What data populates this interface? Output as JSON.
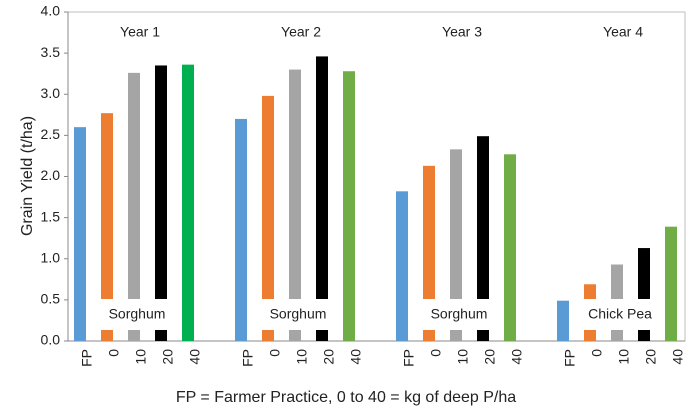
{
  "chart_data": {
    "type": "grouped_bar",
    "ylabel": "Grain Yield (t/ha)",
    "xlabel": "FP = Farmer Practice,  0 to 40 = kg of deep P/ha",
    "categories": [
      "FP",
      "0",
      "10",
      "20",
      "40"
    ],
    "groups": [
      {
        "label": "Year 1",
        "crop": "Sorghum",
        "values": [
          2.6,
          2.77,
          3.26,
          3.35,
          3.36
        ],
        "colors": [
          "#5b9bd5",
          "#ed7d31",
          "#a5a5a5",
          "#000000",
          "#00b050"
        ]
      },
      {
        "label": "Year 2",
        "crop": "Sorghum",
        "values": [
          2.7,
          2.98,
          3.3,
          3.46,
          3.28
        ],
        "colors": [
          "#5b9bd5",
          "#ed7d31",
          "#a5a5a5",
          "#000000",
          "#70ad47"
        ]
      },
      {
        "label": "Year 3",
        "crop": "Sorghum",
        "values": [
          1.82,
          2.13,
          2.33,
          2.49,
          2.27
        ],
        "colors": [
          "#5b9bd5",
          "#ed7d31",
          "#a5a5a5",
          "#000000",
          "#70ad47"
        ]
      },
      {
        "label": "Year 4",
        "crop": "Chick Pea",
        "values": [
          0.49,
          0.69,
          0.93,
          1.13,
          1.39
        ],
        "colors": [
          "#5b9bd5",
          "#ed7d31",
          "#a5a5a5",
          "#000000",
          "#70ad47"
        ]
      }
    ],
    "ylim": [
      0,
      4
    ],
    "yticks": [
      {
        "value": 0,
        "label": "0.0"
      },
      {
        "value": 0.5,
        "label": "0.5"
      },
      {
        "value": 1,
        "label": "1.0"
      },
      {
        "value": 1.5,
        "label": "1.5"
      },
      {
        "value": 2,
        "label": "2.0"
      },
      {
        "value": 2.5,
        "label": "2.5"
      },
      {
        "value": 3,
        "label": "3.0"
      },
      {
        "value": 3.5,
        "label": "3.5"
      },
      {
        "value": 4,
        "label": "4.0"
      }
    ]
  }
}
